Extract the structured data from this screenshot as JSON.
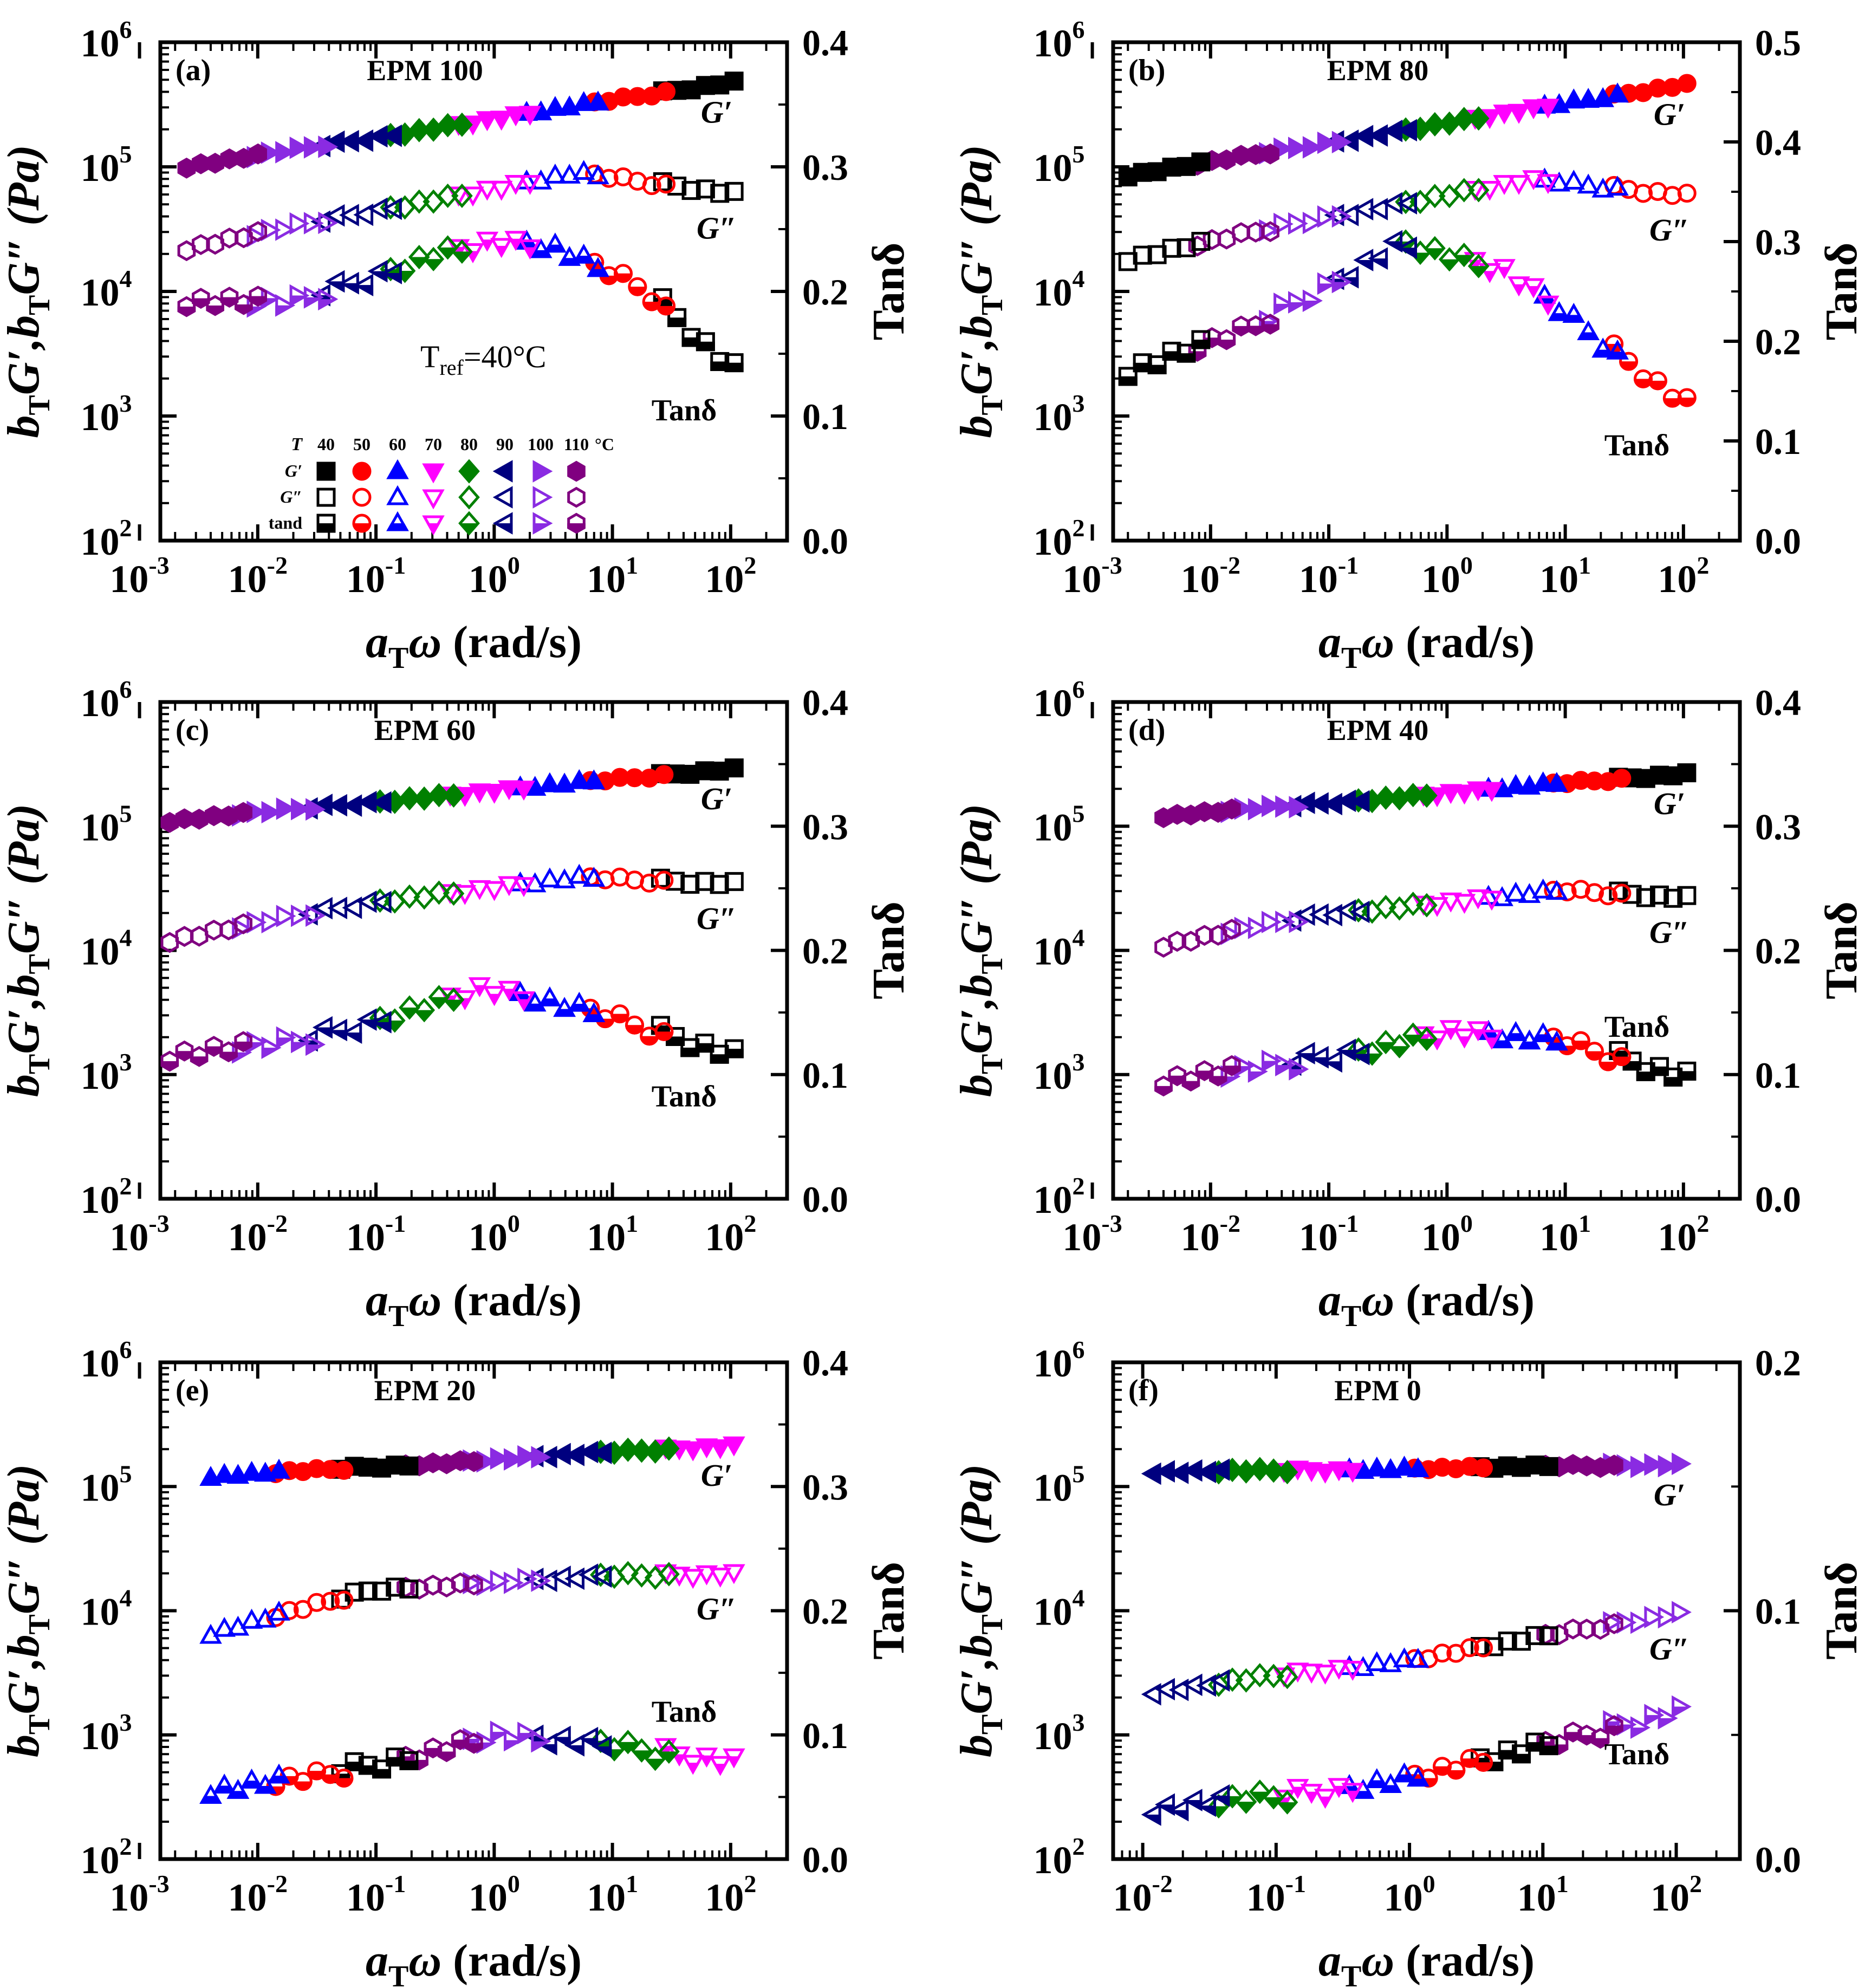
{
  "figure": {
    "series_legend": {
      "temp_header": "T",
      "temperatures": [
        "40",
        "50",
        "60",
        "70",
        "80",
        "90",
        "100",
        "110"
      ],
      "unit": "°C",
      "row_labels": [
        "G′",
        "G″",
        "tand"
      ],
      "colors": [
        "#000000",
        "#ff0000",
        "#0000ff",
        "#ff00ff",
        "#008000",
        "#00007f",
        "#8a2be2",
        "#800080"
      ],
      "markers": [
        "square",
        "circle",
        "triangle-up",
        "triangle-down",
        "diamond",
        "triangle-left",
        "triangle-right",
        "hexagon"
      ]
    },
    "axis_text": {
      "x_label_prefix": "a",
      "x_label_sub": "T",
      "x_label_omega": "ω",
      "x_label_units": " (rad/s)",
      "y_left_label": "b",
      "y_left_sub": "T",
      "y_left_gp": "G′,",
      "y_left_gpp": "G″ (Pa)",
      "y_right_label": "Tanδ",
      "tick_base": "10"
    }
  },
  "chart_data": [
    {
      "panel": "(a)",
      "title": "EPM 100",
      "type": "scatter",
      "xlabel": "aTω (rad/s)",
      "ylabel": "bTG′,bTG″ (Pa)",
      "y2label": "Tanδ",
      "xscale": "log",
      "yscale": "log",
      "xticks": [
        "-3",
        "-2",
        "-1",
        "0",
        "1",
        "2"
      ],
      "yticks": [
        "2",
        "3",
        "4",
        "5",
        "6"
      ],
      "y2ticks": [
        "0.0",
        "0.1",
        "0.2",
        "0.3",
        "0.4"
      ],
      "xlim": [
        0.0015,
        300
      ],
      "ylim": [
        100,
        1000000
      ],
      "y2lim": [
        0,
        0.4
      ],
      "annotations": {
        "gp": "G′",
        "gpp": "G″",
        "tan": "Tanδ",
        "tref_main": "T",
        "tref_sub": "ref",
        "tref_value": "=40°C"
      },
      "curves": {
        "gp": {
          "x": [
            0.0025,
            100
          ],
          "y": [
            100000,
            480000
          ]
        },
        "gpp": {
          "x": [
            0.0025,
            0.1,
            5,
            100
          ],
          "y": [
            22000,
            45000,
            88000,
            62000
          ]
        },
        "tan": {
          "x": [
            0.0025,
            0.02,
            0.3,
            1.0,
            3,
            20,
            100
          ],
          "y": [
            0.192,
            0.19,
            0.23,
            0.24,
            0.235,
            0.2,
            0.14
          ]
        }
      }
    },
    {
      "panel": "(b)",
      "title": "EPM 80",
      "type": "scatter",
      "xlabel": "aTω (rad/s)",
      "ylabel": "bTG′,bTG″ (Pa)",
      "y2label": "Tanδ",
      "xscale": "log",
      "yscale": "log",
      "xticks": [
        "-3",
        "-2",
        "-1",
        "0",
        "1",
        "2"
      ],
      "yticks": [
        "2",
        "3",
        "4",
        "5",
        "6"
      ],
      "y2ticks": [
        "0.0",
        "0.1",
        "0.2",
        "0.3",
        "0.4",
        "0.5"
      ],
      "xlim": [
        0.0015,
        300
      ],
      "ylim": [
        100,
        1000000
      ],
      "y2lim": [
        0,
        0.5
      ],
      "annotations": {
        "gp": "G′",
        "gpp": "G″",
        "tan": "Tanδ"
      },
      "curves": {
        "gp": {
          "x": [
            0.002,
            100
          ],
          "y": [
            85000,
            460000
          ]
        },
        "gpp": {
          "x": [
            0.002,
            0.1,
            5,
            100
          ],
          "y": [
            18000,
            40000,
            78000,
            60000
          ]
        },
        "tan": {
          "x": [
            0.002,
            0.02,
            0.4,
            3,
            20,
            100
          ],
          "y": [
            0.17,
            0.21,
            0.3,
            0.27,
            0.2,
            0.14
          ]
        }
      }
    },
    {
      "panel": "(c)",
      "title": "EPM 60",
      "type": "scatter",
      "xlabel": "aTω (rad/s)",
      "ylabel": "bTG′,bTG″ (Pa)",
      "y2label": "Tanδ",
      "xscale": "log",
      "yscale": "log",
      "xticks": [
        "-3",
        "-2",
        "-1",
        "0",
        "1",
        "2"
      ],
      "yticks": [
        "2",
        "3",
        "4",
        "5",
        "6"
      ],
      "y2ticks": [
        "0.0",
        "0.1",
        "0.2",
        "0.3",
        "0.4"
      ],
      "xlim": [
        0.0015,
        300
      ],
      "ylim": [
        100,
        1000000
      ],
      "y2lim": [
        0,
        0.4
      ],
      "annotations": {
        "gp": "G′",
        "gpp": "G″",
        "tan": "Tanδ"
      },
      "curves": {
        "gp": {
          "x": [
            0.0018,
            100
          ],
          "y": [
            110000,
            290000
          ]
        },
        "gpp": {
          "x": [
            0.0018,
            0.1,
            5,
            100
          ],
          "y": [
            12000,
            25000,
            38000,
            35000
          ]
        },
        "tan": {
          "x": [
            0.0018,
            0.02,
            0.8,
            10,
            100
          ],
          "y": [
            0.115,
            0.125,
            0.17,
            0.145,
            0.118
          ]
        }
      }
    },
    {
      "panel": "(d)",
      "title": "EPM 40",
      "type": "scatter",
      "xlabel": "aTω (rad/s)",
      "ylabel": "bTG′,bTG″ (Pa)",
      "y2label": "Tanδ",
      "xscale": "log",
      "yscale": "log",
      "xticks": [
        "-3",
        "-2",
        "-1",
        "0",
        "1",
        "2"
      ],
      "yticks": [
        "2",
        "3",
        "4",
        "5",
        "6"
      ],
      "y2ticks": [
        "0.0",
        "0.1",
        "0.2",
        "0.3",
        "0.4"
      ],
      "xlim": [
        0.0015,
        300
      ],
      "ylim": [
        100,
        1000000
      ],
      "y2lim": [
        0,
        0.4
      ],
      "annotations": {
        "gp": "G′",
        "gpp": "G″",
        "tan": "Tanδ"
      },
      "curves": {
        "gp": {
          "x": [
            0.004,
            100
          ],
          "y": [
            120000,
            265000
          ]
        },
        "gpp": {
          "x": [
            0.004,
            0.1,
            10,
            100
          ],
          "y": [
            11000,
            20000,
            30000,
            27000
          ]
        },
        "tan": {
          "x": [
            0.004,
            0.03,
            1,
            10,
            100
          ],
          "y": [
            0.095,
            0.105,
            0.135,
            0.125,
            0.1
          ]
        }
      }
    },
    {
      "panel": "(e)",
      "title": "EPM 20",
      "type": "scatter",
      "xlabel": "aTω (rad/s)",
      "ylabel": "bTG′,bTG″ (Pa)",
      "y2label": "Tanδ",
      "xscale": "log",
      "yscale": "log",
      "xticks": [
        "-3",
        "-2",
        "-1",
        "0",
        "1",
        "2"
      ],
      "yticks": [
        "2",
        "3",
        "4",
        "5",
        "6"
      ],
      "y2ticks": [
        "0.0",
        "0.1",
        "0.2",
        "0.3",
        "0.4"
      ],
      "xlim": [
        0.0015,
        300
      ],
      "ylim": [
        100,
        1000000
      ],
      "y2lim": [
        0,
        0.4
      ],
      "annotations": {
        "gp": "G′",
        "gpp": "G″",
        "tan": "Tanδ"
      },
      "curves": {
        "gp": {
          "x": [
            0.004,
            100
          ],
          "y": [
            120000,
            215000
          ]
        },
        "gpp": {
          "x": [
            0.004,
            0.1,
            10,
            100
          ],
          "y": [
            6500,
            15000,
            19000,
            20000
          ]
        },
        "tan": {
          "x": [
            0.004,
            0.03,
            1,
            10,
            100
          ],
          "y": [
            0.055,
            0.065,
            0.1,
            0.09,
            0.08
          ]
        }
      }
    },
    {
      "panel": "(f)",
      "title": "EPM 0",
      "type": "scatter",
      "xlabel": "aTω (rad/s)",
      "ylabel": "bTG′,bTG″ (Pa)",
      "y2label": "Tanδ",
      "xscale": "log",
      "yscale": "log",
      "xticks": [
        "-2",
        "-1",
        "0",
        "1",
        "2"
      ],
      "yticks": [
        "2",
        "3",
        "4",
        "5",
        "6"
      ],
      "y2ticks": [
        "0.0",
        "0.1",
        "0.2"
      ],
      "xlim": [
        0.006,
        300
      ],
      "ylim": [
        100,
        1000000
      ],
      "y2lim": [
        0,
        0.2
      ],
      "annotations": {
        "gp": "G′",
        "gpp": "G″",
        "tan": "Tanδ"
      },
      "curves": {
        "gp": {
          "x": [
            0.012,
            100
          ],
          "y": [
            130000,
            150000
          ]
        },
        "gpp": {
          "x": [
            0.012,
            0.1,
            1,
            100
          ],
          "y": [
            2200,
            3000,
            4000,
            9500
          ]
        },
        "tan": {
          "x": [
            0.012,
            0.1,
            1,
            10,
            100
          ],
          "y": [
            0.02,
            0.025,
            0.033,
            0.045,
            0.06
          ]
        }
      }
    }
  ]
}
